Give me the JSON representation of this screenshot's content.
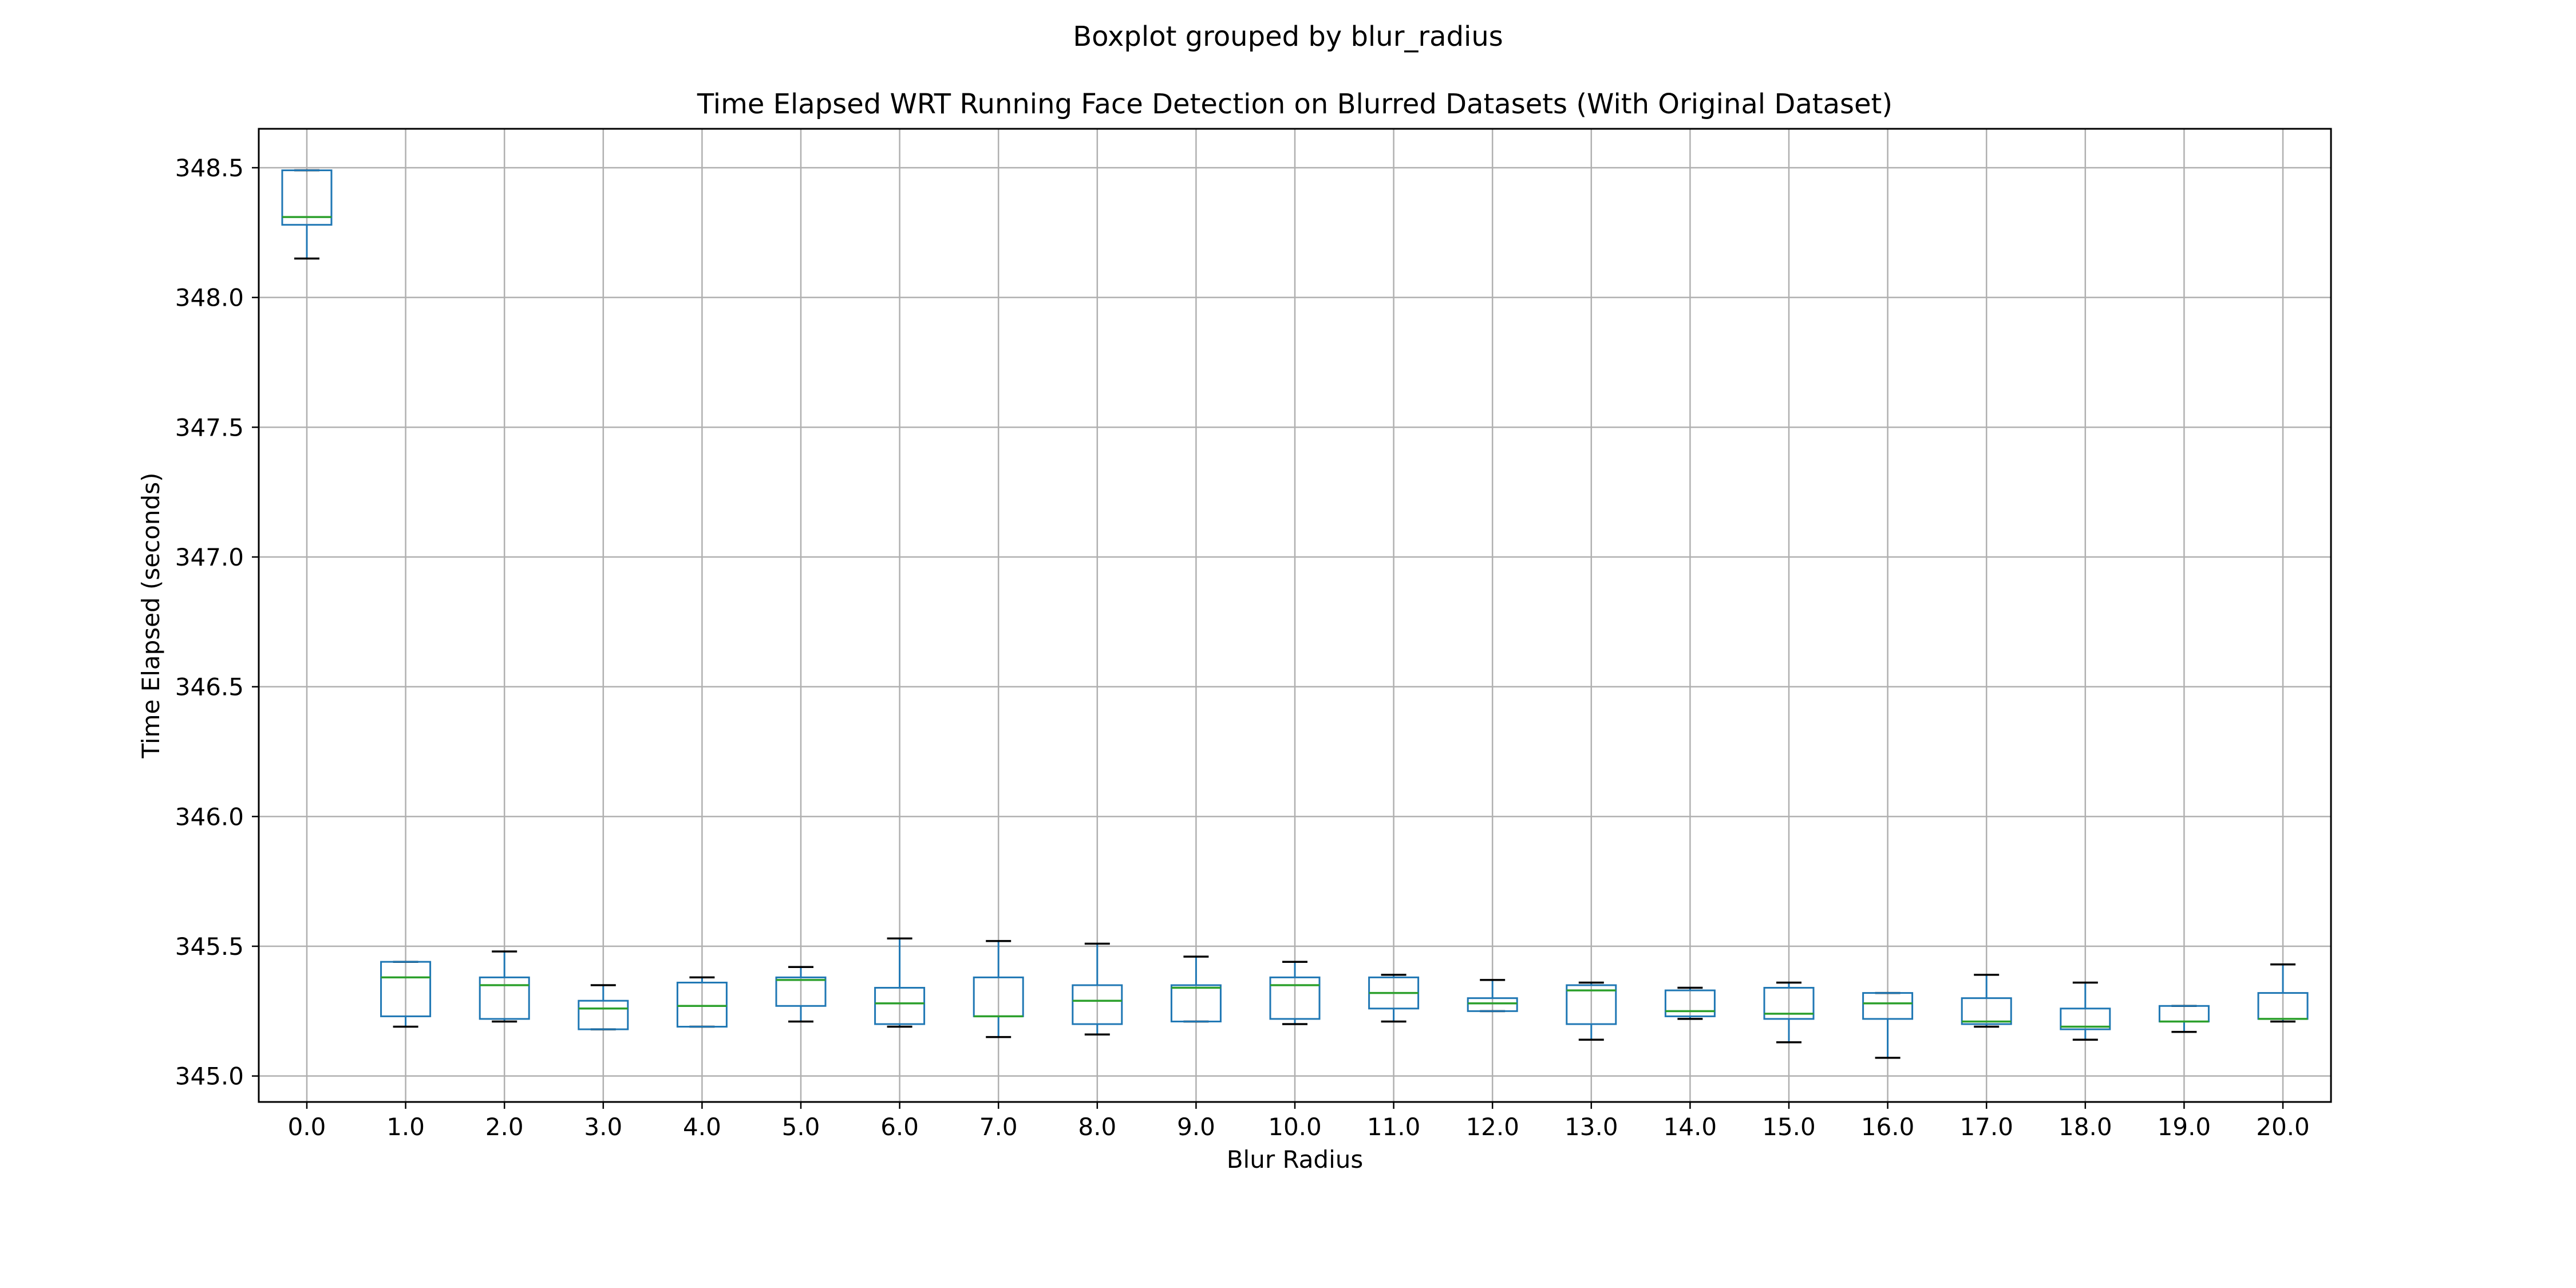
{
  "suptitle": "Boxplot grouped by blur_radius",
  "colors": {
    "box": "#1f77b4",
    "median": "#2ca02c",
    "whisker_cap": "#000000",
    "grid": "#b0b0b0",
    "frame": "#000000"
  },
  "chart_data": {
    "type": "boxplot",
    "title": "Time Elapsed WRT Running Face Detection on Blurred Datasets (With Original Dataset)",
    "xlabel": "Blur Radius",
    "ylabel": "Time Elapsed (seconds)",
    "ylim": [
      344.9,
      348.65
    ],
    "yticks": [
      "345.0",
      "345.5",
      "346.0",
      "346.5",
      "347.0",
      "347.5",
      "348.0",
      "348.5"
    ],
    "grid": true,
    "categories": [
      "0.0",
      "1.0",
      "2.0",
      "3.0",
      "4.0",
      "5.0",
      "6.0",
      "7.0",
      "8.0",
      "9.0",
      "10.0",
      "11.0",
      "12.0",
      "13.0",
      "14.0",
      "15.0",
      "16.0",
      "17.0",
      "18.0",
      "19.0",
      "20.0"
    ],
    "boxes": [
      {
        "whislo": 348.15,
        "q1": 348.28,
        "med": 348.31,
        "q3": 348.49,
        "whishi": 348.49
      },
      {
        "whislo": 345.19,
        "q1": 345.23,
        "med": 345.38,
        "q3": 345.44,
        "whishi": 345.44
      },
      {
        "whislo": 345.21,
        "q1": 345.22,
        "med": 345.35,
        "q3": 345.38,
        "whishi": 345.48
      },
      {
        "whislo": 345.18,
        "q1": 345.18,
        "med": 345.26,
        "q3": 345.29,
        "whishi": 345.35
      },
      {
        "whislo": 345.19,
        "q1": 345.19,
        "med": 345.27,
        "q3": 345.36,
        "whishi": 345.38
      },
      {
        "whislo": 345.21,
        "q1": 345.27,
        "med": 345.37,
        "q3": 345.38,
        "whishi": 345.42
      },
      {
        "whislo": 345.19,
        "q1": 345.2,
        "med": 345.28,
        "q3": 345.34,
        "whishi": 345.53
      },
      {
        "whislo": 345.15,
        "q1": 345.23,
        "med": 345.23,
        "q3": 345.38,
        "whishi": 345.52
      },
      {
        "whislo": 345.16,
        "q1": 345.2,
        "med": 345.29,
        "q3": 345.35,
        "whishi": 345.51
      },
      {
        "whislo": 345.21,
        "q1": 345.21,
        "med": 345.34,
        "q3": 345.35,
        "whishi": 345.46
      },
      {
        "whislo": 345.2,
        "q1": 345.22,
        "med": 345.35,
        "q3": 345.38,
        "whishi": 345.44
      },
      {
        "whislo": 345.21,
        "q1": 345.26,
        "med": 345.32,
        "q3": 345.38,
        "whishi": 345.39
      },
      {
        "whislo": 345.25,
        "q1": 345.25,
        "med": 345.28,
        "q3": 345.3,
        "whishi": 345.37
      },
      {
        "whislo": 345.14,
        "q1": 345.2,
        "med": 345.33,
        "q3": 345.35,
        "whishi": 345.36
      },
      {
        "whislo": 345.22,
        "q1": 345.23,
        "med": 345.25,
        "q3": 345.33,
        "whishi": 345.34
      },
      {
        "whislo": 345.13,
        "q1": 345.22,
        "med": 345.24,
        "q3": 345.34,
        "whishi": 345.36
      },
      {
        "whislo": 345.07,
        "q1": 345.22,
        "med": 345.28,
        "q3": 345.32,
        "whishi": 345.32
      },
      {
        "whislo": 345.19,
        "q1": 345.2,
        "med": 345.21,
        "q3": 345.3,
        "whishi": 345.39
      },
      {
        "whislo": 345.14,
        "q1": 345.18,
        "med": 345.19,
        "q3": 345.26,
        "whishi": 345.36
      },
      {
        "whislo": 345.17,
        "q1": 345.21,
        "med": 345.21,
        "q3": 345.27,
        "whishi": 345.27
      },
      {
        "whislo": 345.21,
        "q1": 345.22,
        "med": 345.22,
        "q3": 345.32,
        "whishi": 345.43
      }
    ]
  }
}
